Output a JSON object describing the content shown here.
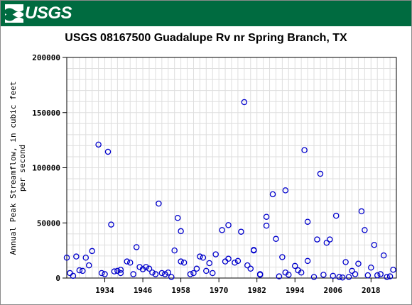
{
  "header": {
    "logo_text": "USGS",
    "logo_icon": "usgs-wave-icon",
    "banner_color": "#006b40"
  },
  "chart_data": {
    "type": "scatter",
    "title": "USGS 08167500 Guadalupe Rv nr Spring Branch, TX",
    "ylabel_lines": [
      "Annual Peak Streamflow, in cubic feet",
      "per second"
    ],
    "xlabel": "",
    "xlim": [
      1922,
      2026
    ],
    "ylim": [
      0,
      200000
    ],
    "x_ticks": [
      1934,
      1946,
      1958,
      1970,
      1982,
      1994,
      2006,
      2018
    ],
    "y_ticks": [
      0,
      50000,
      100000,
      150000,
      200000
    ],
    "grid": true,
    "marker_color": "#0000cc",
    "points": [
      {
        "x": 1922,
        "y": 18500
      },
      {
        "x": 1923,
        "y": 4500
      },
      {
        "x": 1924,
        "y": 2000
      },
      {
        "x": 1925,
        "y": 19500
      },
      {
        "x": 1926,
        "y": 7000
      },
      {
        "x": 1927,
        "y": 6500
      },
      {
        "x": 1928,
        "y": 18500
      },
      {
        "x": 1929,
        "y": 11500
      },
      {
        "x": 1930,
        "y": 24500
      },
      {
        "x": 1932,
        "y": 121000
      },
      {
        "x": 1933,
        "y": 4500
      },
      {
        "x": 1934,
        "y": 3500
      },
      {
        "x": 1935,
        "y": 114500
      },
      {
        "x": 1936,
        "y": 48500
      },
      {
        "x": 1937,
        "y": 6000
      },
      {
        "x": 1938,
        "y": 6500
      },
      {
        "x": 1939,
        "y": 4500
      },
      {
        "x": 1939,
        "y": 7500
      },
      {
        "x": 1941,
        "y": 15000
      },
      {
        "x": 1942,
        "y": 14000
      },
      {
        "x": 1943,
        "y": 3500
      },
      {
        "x": 1944,
        "y": 28000
      },
      {
        "x": 1945,
        "y": 10000
      },
      {
        "x": 1946,
        "y": 8000
      },
      {
        "x": 1947,
        "y": 10000
      },
      {
        "x": 1948,
        "y": 8500
      },
      {
        "x": 1949,
        "y": 5000
      },
      {
        "x": 1950,
        "y": 3500
      },
      {
        "x": 1951,
        "y": 67500
      },
      {
        "x": 1952,
        "y": 4500
      },
      {
        "x": 1953,
        "y": 3500
      },
      {
        "x": 1954,
        "y": 5000
      },
      {
        "x": 1955,
        "y": 1000
      },
      {
        "x": 1956,
        "y": 25000
      },
      {
        "x": 1957,
        "y": 54500
      },
      {
        "x": 1958,
        "y": 15000
      },
      {
        "x": 1958,
        "y": 42500
      },
      {
        "x": 1959,
        "y": 14000
      },
      {
        "x": 1961,
        "y": 3500
      },
      {
        "x": 1962,
        "y": 4500
      },
      {
        "x": 1963,
        "y": 8500
      },
      {
        "x": 1964,
        "y": 19500
      },
      {
        "x": 1965,
        "y": 18500
      },
      {
        "x": 1966,
        "y": 6500
      },
      {
        "x": 1967,
        "y": 13500
      },
      {
        "x": 1968,
        "y": 4500
      },
      {
        "x": 1969,
        "y": 21500
      },
      {
        "x": 1971,
        "y": 43500
      },
      {
        "x": 1972,
        "y": 15000
      },
      {
        "x": 1973,
        "y": 48000
      },
      {
        "x": 1973,
        "y": 17500
      },
      {
        "x": 1975,
        "y": 14000
      },
      {
        "x": 1976,
        "y": 15500
      },
      {
        "x": 1977,
        "y": 42000
      },
      {
        "x": 1978,
        "y": 159500
      },
      {
        "x": 1979,
        "y": 11500
      },
      {
        "x": 1980,
        "y": 8500
      },
      {
        "x": 1981,
        "y": 25000
      },
      {
        "x": 1981,
        "y": 25500
      },
      {
        "x": 1983,
        "y": 3500
      },
      {
        "x": 1983,
        "y": 3000
      },
      {
        "x": 1985,
        "y": 47500
      },
      {
        "x": 1985,
        "y": 55500
      },
      {
        "x": 1987,
        "y": 76000
      },
      {
        "x": 1988,
        "y": 35500
      },
      {
        "x": 1989,
        "y": 1500
      },
      {
        "x": 1990,
        "y": 19000
      },
      {
        "x": 1991,
        "y": 5000
      },
      {
        "x": 1991,
        "y": 79500
      },
      {
        "x": 1992,
        "y": 3000
      },
      {
        "x": 1994,
        "y": 11000
      },
      {
        "x": 1995,
        "y": 7000
      },
      {
        "x": 1996,
        "y": 5000
      },
      {
        "x": 1997,
        "y": 116000
      },
      {
        "x": 1998,
        "y": 15500
      },
      {
        "x": 1998,
        "y": 51000
      },
      {
        "x": 2000,
        "y": 1000
      },
      {
        "x": 2001,
        "y": 35000
      },
      {
        "x": 2002,
        "y": 94500
      },
      {
        "x": 2003,
        "y": 3000
      },
      {
        "x": 2004,
        "y": 32000
      },
      {
        "x": 2005,
        "y": 35000
      },
      {
        "x": 2006,
        "y": 2000
      },
      {
        "x": 2007,
        "y": 56500
      },
      {
        "x": 2008,
        "y": 1000
      },
      {
        "x": 2009,
        "y": 500
      },
      {
        "x": 2010,
        "y": 14500
      },
      {
        "x": 2011,
        "y": 1000
      },
      {
        "x": 2012,
        "y": 6500
      },
      {
        "x": 2013,
        "y": 3500
      },
      {
        "x": 2014,
        "y": 13000
      },
      {
        "x": 2015,
        "y": 60500
      },
      {
        "x": 2016,
        "y": 43500
      },
      {
        "x": 2017,
        "y": 2500
      },
      {
        "x": 2018,
        "y": 9500
      },
      {
        "x": 2019,
        "y": 30000
      },
      {
        "x": 2020,
        "y": 2500
      },
      {
        "x": 2021,
        "y": 3500
      },
      {
        "x": 2022,
        "y": 20500
      },
      {
        "x": 2023,
        "y": 1000
      },
      {
        "x": 2024,
        "y": 1500
      },
      {
        "x": 2025,
        "y": 7500
      }
    ]
  }
}
